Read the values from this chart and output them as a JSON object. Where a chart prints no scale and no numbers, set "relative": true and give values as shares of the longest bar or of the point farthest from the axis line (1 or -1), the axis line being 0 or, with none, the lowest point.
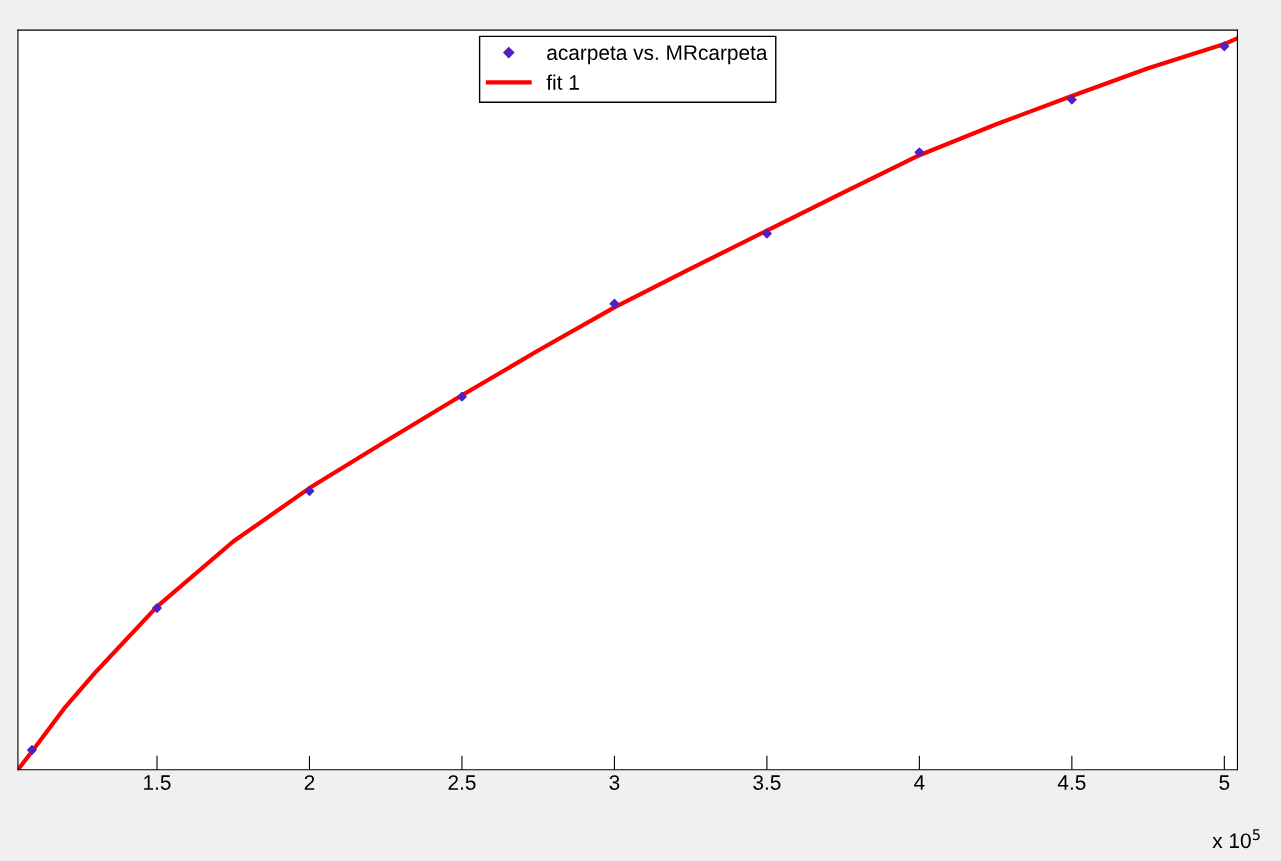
{
  "chart_data": {
    "type": "scatter",
    "relative": true,
    "xlim": [
      1.044,
      5.043
    ],
    "xticks": [
      1.5,
      2,
      2.5,
      3,
      3.5,
      4,
      4.5,
      5
    ],
    "annotations": [
      "x 10$^{5}$"
    ],
    "legend": "top",
    "grid": false,
    "series": [
      {
        "name": "acarpeta vs. MRcarpeta",
        "color": "#5020c0",
        "marker": "diamond",
        "x": [
          1.09,
          1.5,
          2,
          2.5,
          3,
          3.5,
          4,
          4.5,
          5
        ],
        "values": [
          0.027,
          0.221,
          0.381,
          0.51,
          0.637,
          0.733,
          0.844,
          0.916,
          0.989
        ]
      },
      {
        "name": "fit 1",
        "type": "line",
        "color": "#ff0000",
        "line_style": "solid",
        "x": [
          1.044,
          1.09,
          1.2,
          1.3,
          1.5,
          1.75,
          2,
          2.25,
          2.5,
          2.75,
          3,
          3.25,
          3.5,
          3.75,
          4,
          4.25,
          4.5,
          4.75,
          5,
          5.043
        ],
        "values": [
          0,
          0.025,
          0.086,
          0.134,
          0.223,
          0.312,
          0.385,
          0.449,
          0.512,
          0.573,
          0.632,
          0.685,
          0.737,
          0.789,
          0.84,
          0.882,
          0.921,
          0.959,
          0.992,
          1
        ]
      }
    ]
  }
}
